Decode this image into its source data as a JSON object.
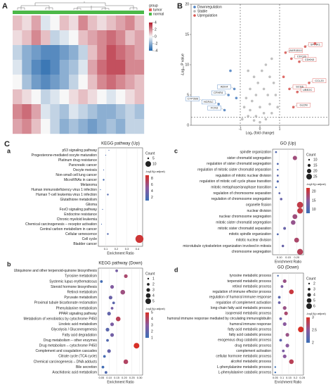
{
  "section_label": "C",
  "chart_data": [
    {
      "type": "heatmap",
      "label": "A",
      "legend_title": "group",
      "groups": [
        {
          "name": "tumor",
          "color": "#e8615a"
        },
        {
          "name": "normal",
          "color": "#4cb848"
        }
      ],
      "z": [
        [
          1,
          0.5,
          1.5,
          -0.5,
          0,
          1,
          0.5,
          2,
          1,
          0.5,
          1,
          1.5,
          2,
          1
        ],
        [
          0.5,
          1,
          2,
          1,
          -1,
          -0.5,
          0,
          1,
          1.5,
          2,
          2.5,
          2,
          1,
          1.5
        ],
        [
          -1,
          -2,
          -2.5,
          -3,
          -3,
          -2.5,
          -2,
          -1,
          1,
          2,
          3,
          2.5,
          2,
          1.5
        ],
        [
          -0.5,
          -2,
          -3,
          -3.5,
          -3,
          -2,
          -1.5,
          -0.5,
          1.5,
          2.5,
          3,
          3,
          2,
          2
        ],
        [
          0,
          -1.5,
          -2.5,
          -3,
          -2.5,
          -2,
          -1,
          0,
          1,
          2,
          2.5,
          2,
          1.5,
          1
        ],
        [
          1,
          0.5,
          0,
          -1,
          -0.5,
          0,
          0.5,
          1,
          0.5,
          0,
          -0.5,
          0,
          0.5,
          1
        ],
        [
          2,
          2.5,
          1.5,
          -0.5,
          -1,
          -1.5,
          -0.5,
          -1,
          -1.5,
          -2,
          -2,
          -1.5,
          -1,
          -1.5
        ],
        [
          1.5,
          2,
          1,
          0,
          -1,
          -2,
          -1.5,
          -2,
          -2.5,
          -2,
          -1.5,
          -2,
          -1,
          -1
        ]
      ],
      "clim": [
        -4,
        4
      ],
      "cticks": [
        -4,
        -2,
        0,
        2,
        4
      ]
    },
    {
      "type": "scatter",
      "label": "B",
      "xlabel": "Log₂ (fold change)",
      "ylabel": "-Log₁₀ P value",
      "xlim": [
        -3.5,
        3.5
      ],
      "xticks": [
        -1,
        0,
        1
      ],
      "ylim": [
        0,
        20
      ],
      "yticks": [
        0,
        5,
        10,
        15,
        20
      ],
      "vlines": [
        -1,
        1
      ],
      "hline": 1.3,
      "series": [
        {
          "name": "Downregulation",
          "color": "#4a7fc1",
          "x": [
            -2.9,
            -2.1,
            -1.6,
            -1.3,
            -2.4,
            -1.8,
            -1.2,
            -1.5
          ],
          "y": [
            4,
            3.5,
            5,
            6,
            3,
            2.5,
            4.5,
            9
          ],
          "labels": [
            "CYP2B6",
            "HGFAC",
            "CFHR4",
            "ADH4",
            null,
            "FCN3",
            null,
            null
          ]
        },
        {
          "name": "Stable",
          "color": "#b5b5b5",
          "x": [
            -0.9,
            -0.6,
            -0.3,
            0,
            0.3,
            0.6,
            0.9,
            -0.8,
            -0.5,
            -0.2,
            0.2,
            0.5,
            0.8,
            -0.7,
            -0.4,
            0,
            0.4,
            0.7,
            -0.5,
            -0.2,
            0.2,
            0.5,
            0.1,
            -0.1,
            0.3,
            -0.3,
            0.6,
            -0.6
          ],
          "y": [
            1,
            1.5,
            0.8,
            0.5,
            1,
            2,
            3,
            3,
            2.5,
            1.5,
            2,
            3.5,
            5,
            4.5,
            4,
            3,
            5,
            7,
            6,
            5,
            6,
            8,
            9,
            7,
            10,
            8,
            11,
            9
          ]
        },
        {
          "name": "Upregulation",
          "color": "#d9534f",
          "x": [
            1.3,
            1.6,
            2.0,
            2.3,
            2.8,
            1.5,
            1.9,
            2.5,
            1.2,
            1.7
          ],
          "y": [
            12,
            11,
            10.5,
            13,
            13.5,
            6,
            5.5,
            7,
            8,
            3
          ],
          "labels": [
            "AKR1B10",
            "CDC20",
            "CDKN3",
            "SPINK1",
            null,
            "SCD5",
            "UBE2C",
            "CCL20",
            null,
            "GLDN"
          ]
        }
      ]
    },
    {
      "type": "dot",
      "label": "a",
      "title": "KEGG pathway (Up)",
      "xlabel": "Enrichment Ratio",
      "terms": [
        "p53 signaling pathway",
        "Progesterone-mediated oocyte maturation",
        "Platinum drug resistance",
        "Pancreatic cancer",
        "Oocyte meiosis",
        "Non-small cell lung cancer",
        "MicroRNAs in cancer",
        "Melanoma",
        "Human immunodeficiency virus 1 infection",
        "Human T-cell leukemia virus 1 infection",
        "Glutathione metabolism",
        "Glioma",
        "FoxO signaling pathway",
        "Endocrine resistance",
        "Chronic myeloid leukemia",
        "Chemical carcinogenesis – receptor activation",
        "Central carbon metabolism in cancer",
        "Cellular senescence",
        "Cell cycle",
        "Bladder cancer"
      ],
      "ratios": [
        0.13,
        0.1,
        0.08,
        0.08,
        0.08,
        0.08,
        0.08,
        0.08,
        0.05,
        0.12,
        0.06,
        0.07,
        0.07,
        0.06,
        0.06,
        0.06,
        0.07,
        0.12,
        0.42,
        0.1
      ],
      "counts": [
        4,
        4,
        3,
        3,
        4,
        3,
        5,
        3,
        4,
        5,
        3,
        3,
        4,
        3,
        3,
        4,
        3,
        5,
        13,
        3
      ],
      "padj": [
        2,
        1.6,
        1.5,
        1.5,
        1.7,
        1.5,
        1.6,
        1.5,
        1.4,
        2.2,
        1.5,
        1.4,
        1.6,
        1.4,
        1.4,
        1.5,
        1.4,
        2.1,
        8.5,
        1.5
      ],
      "xlim": [
        0.03,
        0.45
      ],
      "xticks": [
        0.1,
        0.2,
        0.3,
        0.4
      ],
      "size_title": "Count",
      "size_ticks": [
        5,
        10
      ],
      "color_title": "-log10(p.adjust)",
      "clim": [
        1,
        9
      ],
      "cticks": [
        2,
        4,
        6,
        8
      ]
    },
    {
      "type": "dot",
      "label": "b",
      "title": "KEGG pathway (Down)",
      "xlabel": "Enrichment Ratio",
      "terms": [
        "Ubiquinone and other terpenoid-quinone biosynthesis",
        "Tyrosine metabolism",
        "Systemic lupus erythematosus",
        "Steroid hormone biosynthesis",
        "Retinol metabolism",
        "Pyruvate metabolism",
        "Proximal tubule bicarbonate reclamation",
        "Phenylalanine metabolism",
        "PPAR signaling pathway",
        "Metabolism of xenobiotics by cytochrome P450",
        "Linoleic acid metabolism",
        "Glycolysis / Gluconeogenesis",
        "Fatty acid degradation",
        "Drug metabolism – other enzymes",
        "Drug metabolism – cytochrome P450",
        "Complement and coagulation cascades",
        "Citrate cycle (TCA cycle)",
        "Chemical carcinogenesis – DNA adducts",
        "Bile secretion",
        "Arachidonic acid metabolism"
      ],
      "ratios": [
        0.15,
        0.21,
        0.05,
        0.12,
        0.19,
        0.11,
        0.13,
        0.12,
        0.1,
        0.16,
        0.12,
        0.09,
        0.12,
        0.09,
        0.28,
        0.1,
        0.07,
        0.21,
        0.06,
        0.08
      ],
      "counts": [
        2,
        3,
        2,
        3,
        4,
        3,
        2,
        2,
        3,
        4,
        3,
        3,
        3,
        2,
        5,
        3,
        2,
        4,
        2,
        2
      ],
      "padj": [
        2.5,
        3.8,
        1.2,
        2.8,
        3.5,
        2.2,
        1.8,
        2.5,
        2,
        4.2,
        2.6,
        1.8,
        2.4,
        1.6,
        5,
        2.1,
        1.3,
        4,
        1.2,
        1.5
      ],
      "xlim": [
        0.03,
        0.32
      ],
      "xticks": [
        {
          "value": 0.05,
          "label": "0.05"
        },
        {
          "value": 0.1,
          "label": "0.10"
        },
        {
          "value": 0.15,
          "label": "0.15"
        },
        {
          "value": 0.2,
          "label": "0.20"
        },
        {
          "value": 0.25,
          "label": "0.25"
        },
        {
          "value": 0.3,
          "label": "0.30"
        }
      ],
      "size_title": "Count",
      "size_ticks": [
        1,
        2,
        3,
        4,
        5
      ],
      "color_title": "-log10(p.adjust)",
      "clim": [
        1,
        5
      ],
      "cticks": [
        1,
        2,
        3,
        4,
        5
      ]
    },
    {
      "type": "dot",
      "label": "c",
      "title": "GO (Up)",
      "xlabel": "Enrichment Ratio",
      "terms": [
        "spindle organization",
        "sister chromatid segregation",
        "regulation of sister chromatid segregation",
        "regulation of mitotic sister chromatid separation",
        "regulation of mitotic nuclear division",
        "regulation of mitotic cell cycle phase transition",
        "mitotic metaphase/anaphase transition",
        "regulation of chromosome separation",
        "regulation of chromosome segregation",
        "organelle fission",
        "nuclear division",
        "nuclear chromosome segregation",
        "mitotic sister chromatid segregation",
        "mitotic sister chromatid separation",
        "mitotic spindle organization",
        "mitotic nuclear division",
        "microtubule cytoskeleton organization involved in mitosis",
        "chromosome segregation"
      ],
      "ratios": [
        0.08,
        0.19,
        0.09,
        0.09,
        0.09,
        0.09,
        0.08,
        0.1,
        0.11,
        0.22,
        0.22,
        0.19,
        0.18,
        0.13,
        0.09,
        0.2,
        0.12,
        0.22
      ],
      "counts": [
        11,
        20,
        11,
        10,
        11,
        12,
        10,
        11,
        13,
        27,
        25,
        22,
        21,
        14,
        11,
        22,
        13,
        26
      ],
      "padj": [
        10,
        17,
        10,
        10,
        11,
        10,
        9,
        11,
        12,
        20,
        20,
        17,
        16,
        12,
        10,
        18,
        12,
        19
      ],
      "xlim": [
        0.06,
        0.24
      ],
      "xticks": [
        {
          "value": 0.1,
          "label": "0.10"
        },
        {
          "value": 0.15,
          "label": "0.15"
        },
        {
          "value": 0.2,
          "label": "0.20"
        }
      ],
      "size_title": "Count",
      "size_ticks": [
        10,
        15,
        20,
        25
      ],
      "color_title": "-log10(p.adjust)",
      "clim": [
        8,
        22
      ],
      "cticks": [
        10,
        15,
        20
      ]
    },
    {
      "type": "dot",
      "label": "d",
      "title": "GO (Down)",
      "xlabel": "Enrichment Ratio",
      "terms": [
        "tyrosine metabolic process",
        "terpenoid metabolic process",
        "retinol metabolic process",
        "regulation of immune effector process",
        "regulation of humoral immune response",
        "regulation of complement activation",
        "long-chain fatty acid metabolic process",
        "isoprenoid metabolic process",
        "humoral immune response mediated by circulating immunoglobulin",
        "humoral immune response",
        "fatty acid metabolic process",
        "fatty acid catabolic process",
        "exogenous drug catabolic process",
        "drug metabolic process",
        "complement activation",
        "cellular hormone metabolic process",
        "alcohol metabolic process",
        "L-phenylalanine metabolic process",
        "L-phenylalanine catabolic process"
      ],
      "ratios": [
        0.07,
        0.12,
        0.1,
        0.17,
        0.08,
        0.08,
        0.12,
        0.13,
        0.09,
        0.12,
        0.24,
        0.14,
        0.09,
        0.14,
        0.11,
        0.12,
        0.17,
        0.05,
        0.05
      ],
      "counts": [
        2,
        4,
        3,
        5,
        3,
        3,
        4,
        4,
        3,
        4,
        6,
        4,
        3,
        4,
        3,
        4,
        5,
        2,
        2
      ],
      "padj": [
        2.1,
        2.6,
        2.4,
        2.9,
        2.2,
        2.3,
        2.6,
        2.7,
        2.3,
        2.5,
        3,
        2.6,
        2.2,
        2.5,
        2.4,
        2.5,
        2.8,
        2,
        2
      ],
      "xlim": [
        0.03,
        0.26
      ],
      "xticks": [
        0.05,
        0.1,
        0.15,
        0.2,
        0.25
      ],
      "size_title": "Count",
      "size_ticks": [
        2,
        3,
        4,
        5,
        6
      ],
      "color_title": "-log10(p.adjust)",
      "clim": [
        2,
        3
      ],
      "cticks": [
        2,
        2.5,
        3
      ]
    }
  ]
}
